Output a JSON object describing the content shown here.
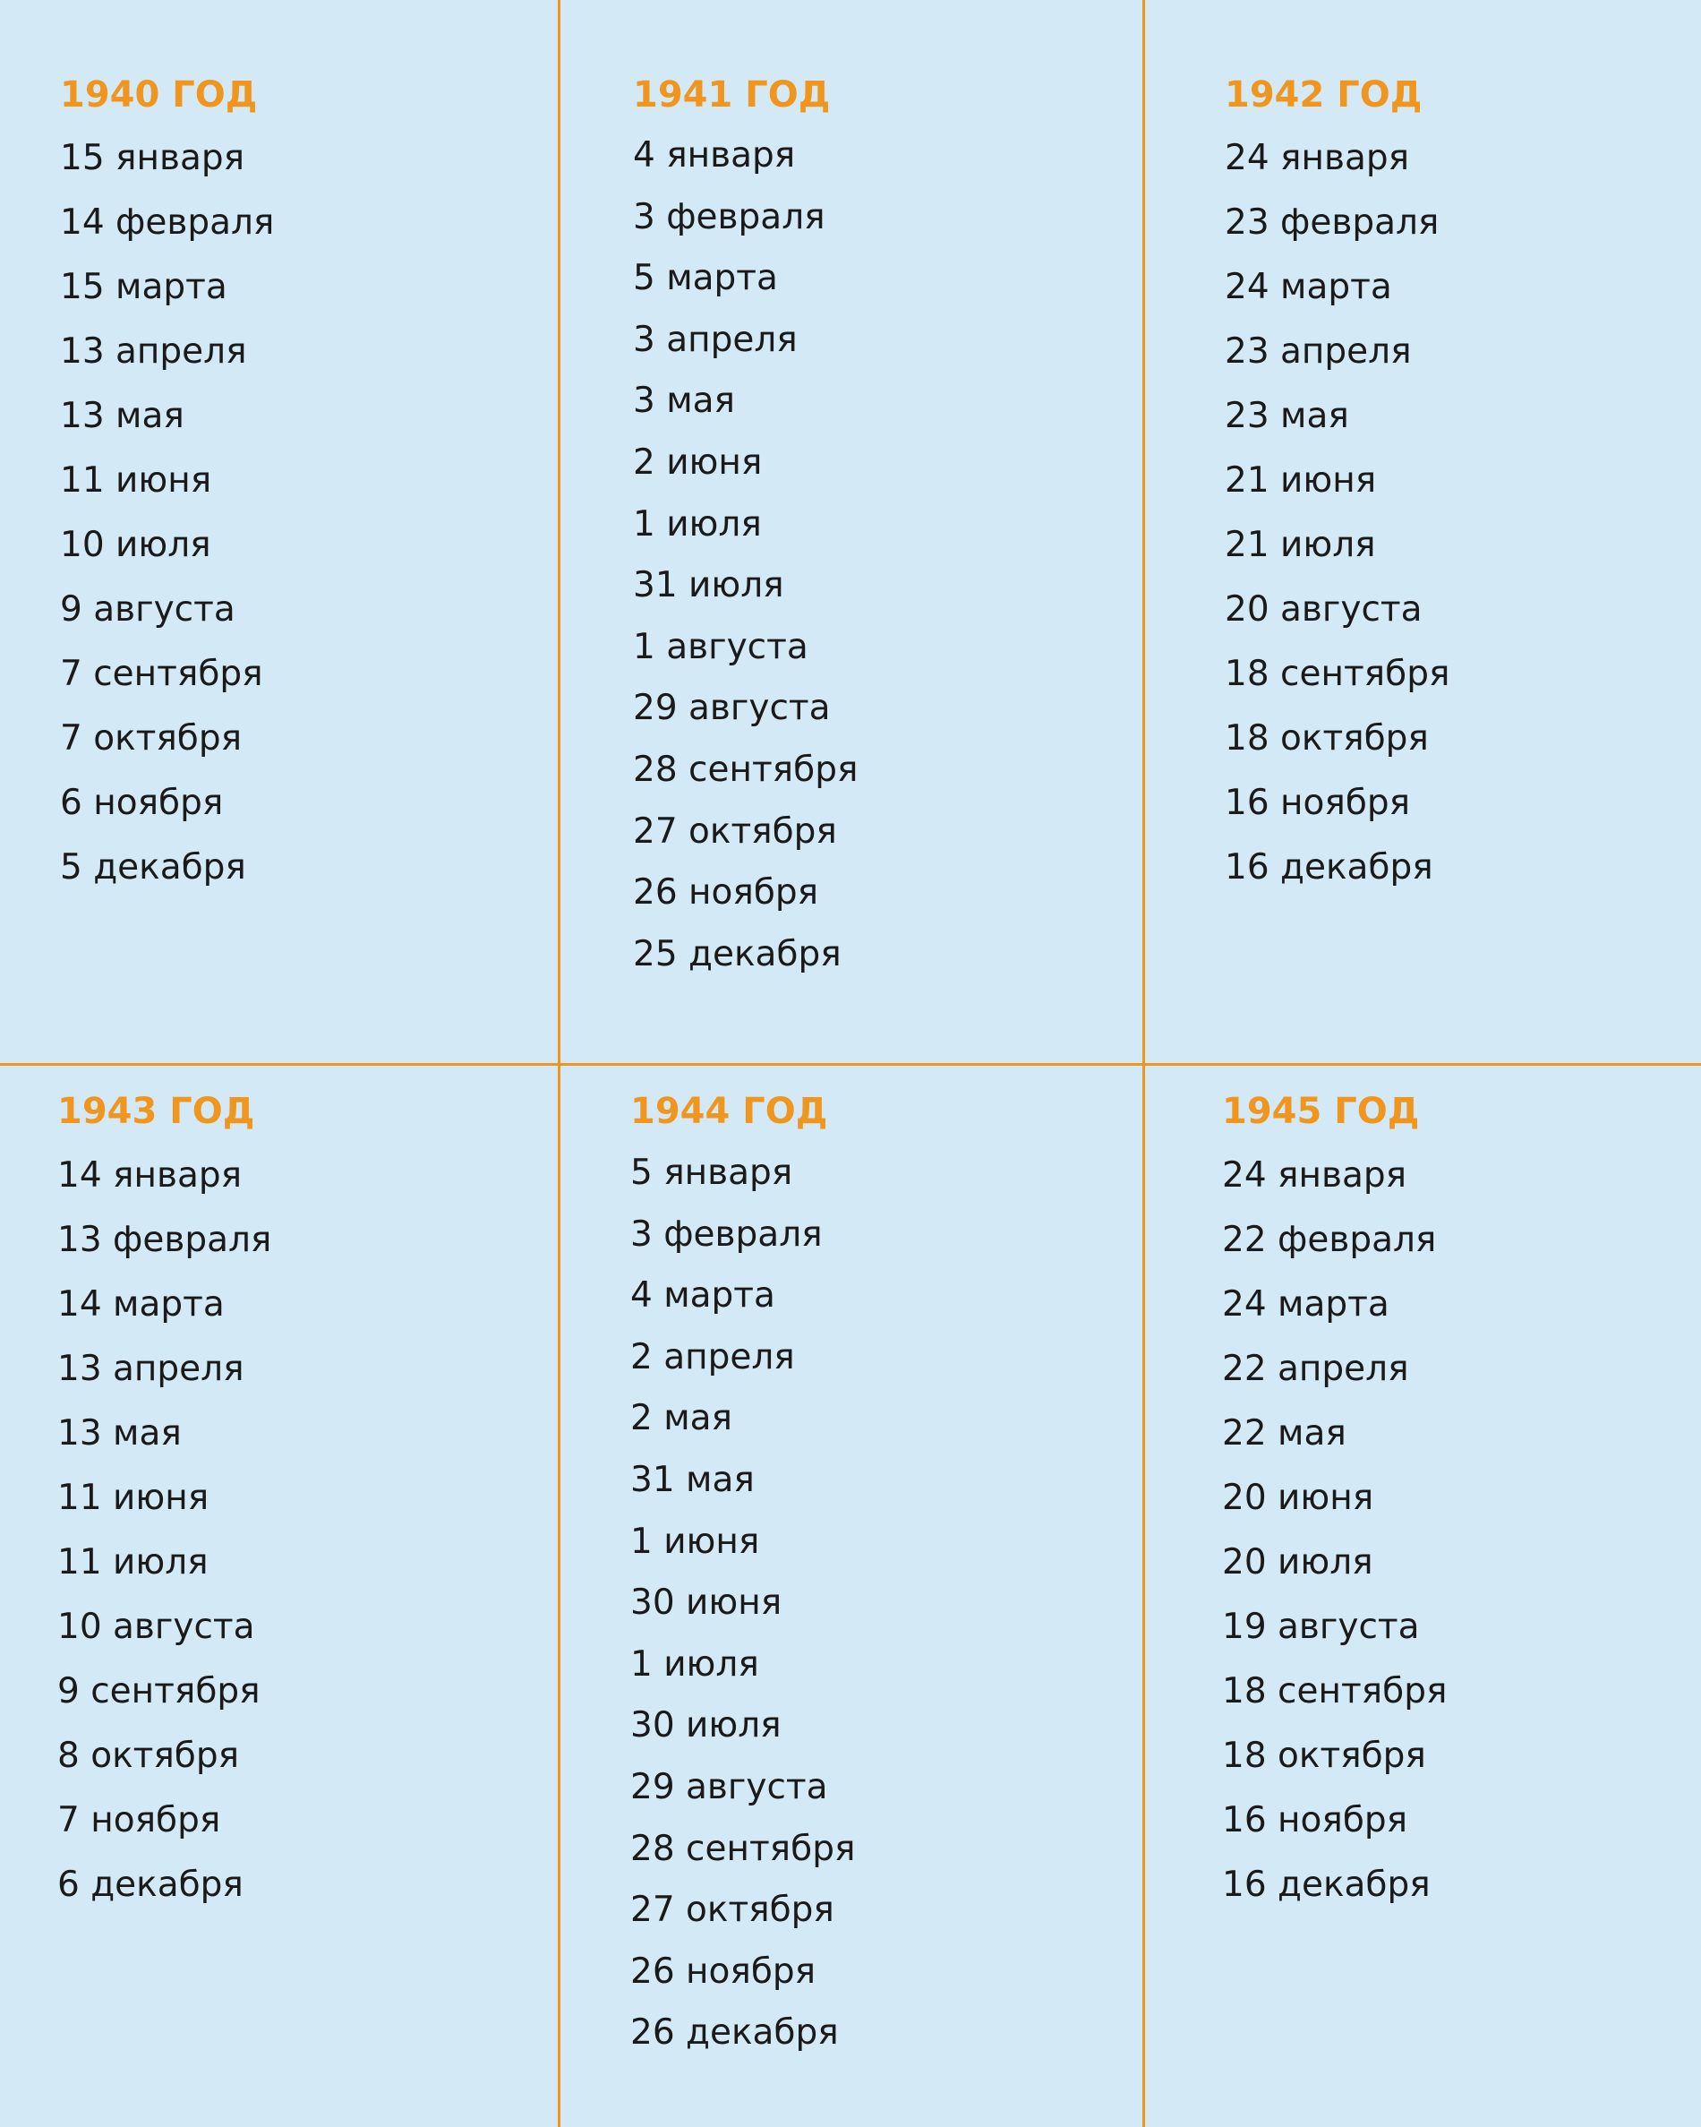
{
  "colors": {
    "background": "#d3e9f5",
    "accent": "#f0961e",
    "text": "#1a1a1a"
  },
  "years": [
    {
      "title": "1940 ГОД",
      "dates": [
        "15 января",
        "14 февраля",
        "15 марта",
        "13 апреля",
        "13 мая",
        "11 июня",
        "10 июля",
        "9 августа",
        "7 сентября",
        "7 октября",
        "6 ноября",
        "5 декабря"
      ]
    },
    {
      "title": "1941 ГОД",
      "dates": [
        "4 января",
        "3 февраля",
        "5 марта",
        "3 апреля",
        "3 мая",
        "2 июня",
        "1 июля",
        "31 июля",
        "1 августа",
        "29 августа",
        "28 сентября",
        "27 октября",
        "26 ноября",
        "25 декабря"
      ]
    },
    {
      "title": "1942 ГОД",
      "dates": [
        "24 января",
        "23 февраля",
        "24 марта",
        "23 апреля",
        "23 мая",
        "21 июня",
        "21 июля",
        "20 августа",
        "18 сентября",
        "18 октября",
        "16 ноября",
        "16 декабря"
      ]
    },
    {
      "title": "1943 ГОД",
      "dates": [
        "14 января",
        "13 февраля",
        "14 марта",
        "13 апреля",
        "13 мая",
        "11 июня",
        "11 июля",
        "10 августа",
        "9 сентября",
        "8 октября",
        "7 ноября",
        "6 декабря"
      ]
    },
    {
      "title": "1944 ГОД",
      "dates": [
        "5 января",
        "3 февраля",
        "4 марта",
        "2 апреля",
        "2 мая",
        "31 мая",
        "1 июня",
        "30 июня",
        "1 июля",
        "30 июля",
        "29 августа",
        "28 сентября",
        "27 октября",
        "26 ноября",
        "26 декабря"
      ]
    },
    {
      "title": "1945 ГОД",
      "dates": [
        "24 января",
        "22 февраля",
        "24 марта",
        "22 апреля",
        "22 мая",
        "20 июня",
        "20 июля",
        "19 августа",
        "18 сентября",
        "18 октября",
        "16 ноября",
        "16 декабря"
      ]
    }
  ]
}
